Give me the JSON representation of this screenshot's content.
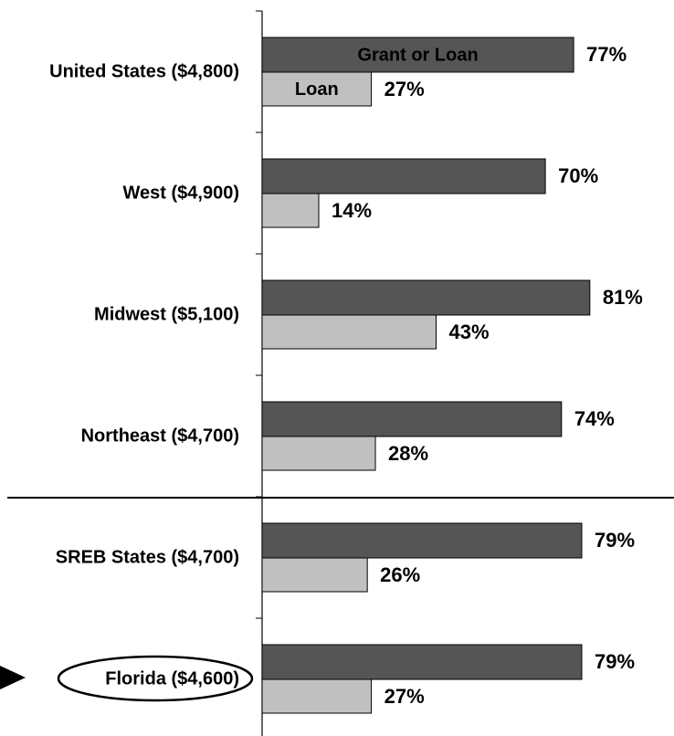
{
  "chart_data": {
    "type": "bar",
    "orientation": "horizontal",
    "categories": [
      "United States ($4,800)",
      "West ($4,900)",
      "Midwest ($5,100)",
      "Northeast ($4,700)",
      "SREB States ($4,700)",
      "Florida ($4,600)"
    ],
    "series": [
      {
        "name": "Grant or Loan",
        "color": "#555555",
        "values": [
          77,
          70,
          81,
          74,
          79,
          79
        ],
        "value_labels": [
          "77%",
          "70%",
          "81%",
          "74%",
          "79%",
          "79%"
        ]
      },
      {
        "name": "Loan",
        "color": "#c0c0c0",
        "values": [
          27,
          14,
          43,
          28,
          26,
          27
        ],
        "value_labels": [
          "27%",
          "14%",
          "43%",
          "28%",
          "26%",
          "27%"
        ]
      }
    ],
    "xlim": [
      0,
      100
    ]
  }
}
